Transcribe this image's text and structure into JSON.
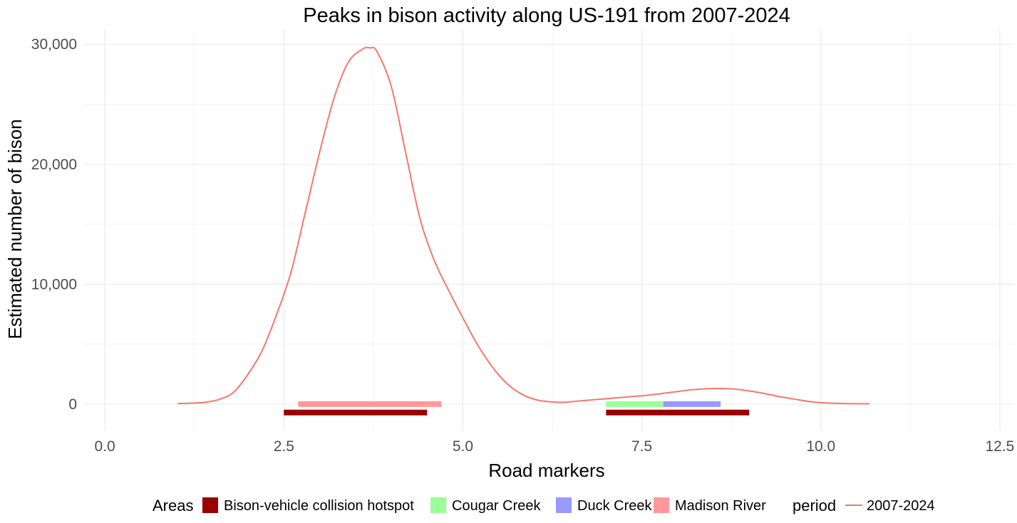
{
  "chart_data": {
    "type": "line",
    "title": "Peaks in bison activity along US-191 from 2007-2024",
    "xlabel": "Road markers",
    "ylabel": "Estimated number of bison",
    "xlim": [
      -0.3,
      12.7
    ],
    "ylim": [
      -2200,
      31200
    ],
    "x_ticks": [
      0,
      2.5,
      5,
      7.5,
      10,
      12.5
    ],
    "x_tick_labels": [
      "0.0",
      "2.5",
      "5.0",
      "7.5",
      "10.0",
      "12.5"
    ],
    "y_ticks": [
      0,
      10000,
      20000,
      30000
    ],
    "y_tick_labels": [
      "0",
      "10,000",
      "20,000",
      "30,000"
    ],
    "grid": true,
    "legend_position": "bottom",
    "areas_legend_title": "Areas",
    "period_legend_title": "period",
    "areas": [
      {
        "name": "Bison-vehicle collision hotspot",
        "color": "#990000",
        "segments": [
          {
            "x_start": 2.5,
            "x_end": 4.5,
            "y": -700
          },
          {
            "x_start": 7.0,
            "x_end": 9.0,
            "y": -700
          }
        ]
      },
      {
        "name": "Cougar Creek",
        "color": "#99ff99",
        "segments": [
          {
            "x_start": 7.0,
            "x_end": 7.8,
            "y": 0
          }
        ]
      },
      {
        "name": "Duck Creek",
        "color": "#9999ff",
        "segments": [
          {
            "x_start": 7.8,
            "x_end": 8.6,
            "y": 0
          }
        ]
      },
      {
        "name": "Madison River",
        "color": "#ff9999",
        "segments": [
          {
            "x_start": 2.7,
            "x_end": 4.7,
            "y": 0
          }
        ]
      }
    ],
    "series": [
      {
        "name": "2007-2024",
        "color": "#f8766d",
        "x": [
          1.02,
          1.2,
          1.4,
          1.6,
          1.8,
          2.0,
          2.2,
          2.4,
          2.6,
          2.8,
          3.0,
          3.2,
          3.4,
          3.6,
          3.7,
          3.8,
          4.0,
          4.2,
          4.4,
          4.6,
          4.8,
          5.0,
          5.2,
          5.4,
          5.6,
          5.8,
          6.0,
          6.2,
          6.4,
          6.6,
          6.8,
          7.0,
          7.2,
          7.4,
          7.6,
          7.8,
          8.0,
          8.2,
          8.4,
          8.6,
          8.8,
          9.0,
          9.2,
          9.4,
          9.6,
          9.8,
          10.0,
          10.2,
          10.4,
          10.68
        ],
        "y": [
          50,
          80,
          150,
          400,
          1000,
          2500,
          4500,
          7500,
          11000,
          16000,
          21000,
          25500,
          28500,
          29600,
          29700,
          29400,
          26500,
          21000,
          15500,
          12000,
          9500,
          7200,
          5000,
          3200,
          1800,
          900,
          400,
          200,
          150,
          250,
          350,
          450,
          550,
          650,
          750,
          900,
          1050,
          1200,
          1280,
          1300,
          1250,
          1100,
          900,
          650,
          450,
          250,
          120,
          70,
          40,
          30
        ]
      }
    ]
  }
}
